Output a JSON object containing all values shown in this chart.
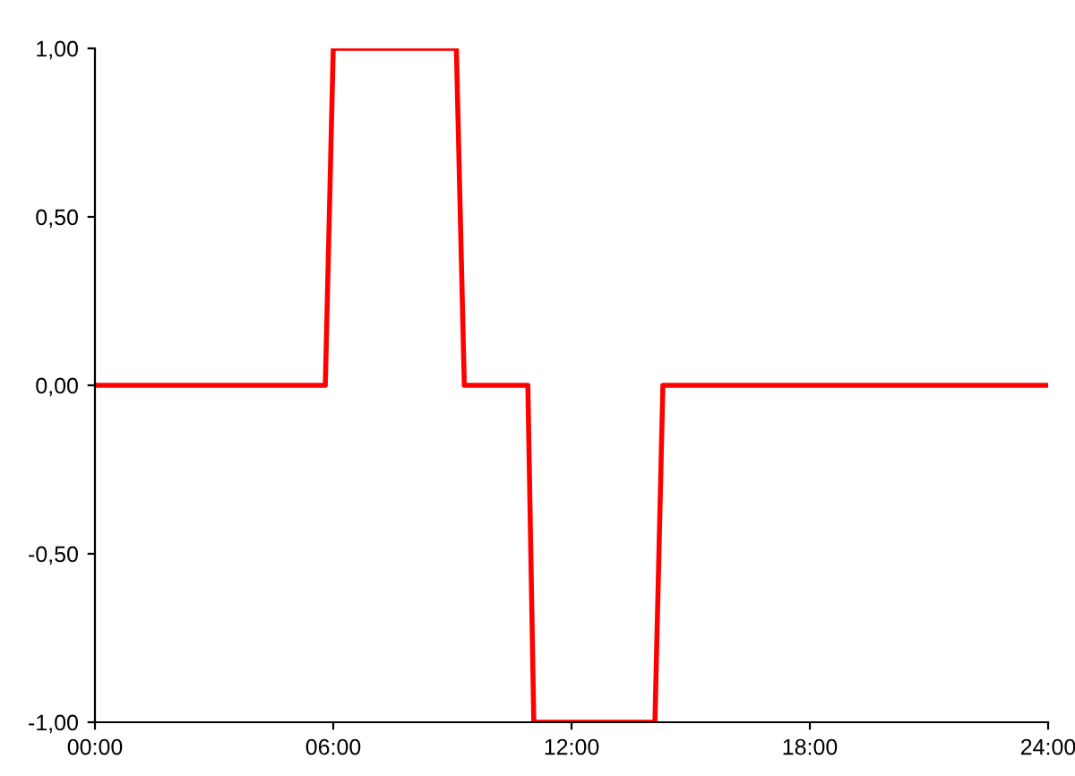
{
  "chart_data": {
    "type": "line",
    "x": [
      0,
      5.8,
      6.0,
      9.1,
      9.3,
      10.9,
      11.05,
      14.1,
      14.3,
      24
    ],
    "series": [
      {
        "color": "#ff0000",
        "values": [
          0,
          0,
          1,
          1,
          0,
          0,
          -1,
          -1,
          0,
          0
        ]
      }
    ],
    "xlim": [
      0,
      24
    ],
    "xticks": [
      {
        "value": 0,
        "label": "00:00"
      },
      {
        "value": 6,
        "label": "06:00"
      },
      {
        "value": 12,
        "label": "12:00"
      },
      {
        "value": 18,
        "label": "18:00"
      },
      {
        "value": 24,
        "label": "24:00"
      }
    ],
    "ylim": [
      -1,
      1
    ],
    "yticks": [
      {
        "value": -1,
        "label": "-1,00"
      },
      {
        "value": -0.5,
        "label": "-0,50"
      },
      {
        "value": 0,
        "label": "0,00"
      },
      {
        "value": 0.5,
        "label": "0,50"
      },
      {
        "value": 1,
        "label": "1,00"
      }
    ],
    "grid": false,
    "legend": false,
    "marker": "none",
    "line_style": "solid"
  }
}
